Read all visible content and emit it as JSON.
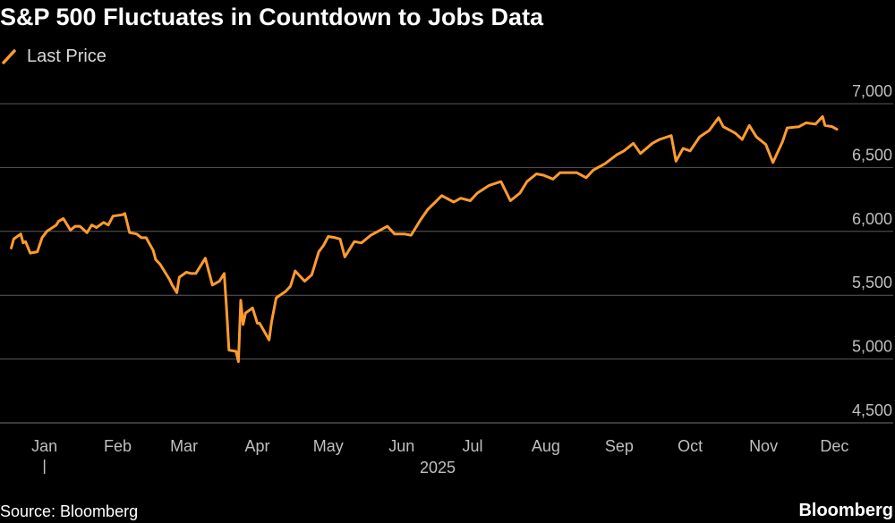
{
  "title": "S&P 500 Fluctuates in Countdown to Jobs Data",
  "legend": {
    "label": "Last Price",
    "color": "#ff9b2f"
  },
  "source": "Source: Bloomberg",
  "brand": "Bloomberg",
  "colors": {
    "background": "#000000",
    "grid": "#5a5a5a",
    "line": "#ff9b2f",
    "text": "#bfbfbf"
  },
  "chart_data": {
    "type": "line",
    "title": "S&P 500 Fluctuates in Countdown to Jobs Data",
    "xlabel": "2025",
    "ylabel": "",
    "ylim": [
      4500,
      7000
    ],
    "yticks": [
      4500,
      5000,
      5500,
      6000,
      6500,
      7000
    ],
    "ytick_labels": [
      "4,500",
      "5,000",
      "5,500",
      "6,000",
      "6,500",
      "7,000"
    ],
    "xtick_labels": [
      "Jan",
      "Feb",
      "Mar",
      "Apr",
      "May",
      "Jun",
      "Jul",
      "Aug",
      "Sep",
      "Oct",
      "Nov",
      "Dec"
    ],
    "xlim": [
      "2025-01-01",
      "2026-01-01"
    ],
    "grid": true,
    "legend_position": "top-left",
    "series": [
      {
        "name": "Last Price",
        "x": [
          "2025-01-02",
          "2025-01-03",
          "2025-01-06",
          "2025-01-07",
          "2025-01-08",
          "2025-01-10",
          "2025-01-13",
          "2025-01-15",
          "2025-01-17",
          "2025-01-21",
          "2025-01-22",
          "2025-01-24",
          "2025-01-27",
          "2025-01-29",
          "2025-01-31",
          "2025-02-03",
          "2025-02-05",
          "2025-02-07",
          "2025-02-10",
          "2025-02-12",
          "2025-02-14",
          "2025-02-18",
          "2025-02-19",
          "2025-02-21",
          "2025-02-24",
          "2025-02-26",
          "2025-02-28",
          "2025-03-03",
          "2025-03-04",
          "2025-03-06",
          "2025-03-10",
          "2025-03-11",
          "2025-03-13",
          "2025-03-14",
          "2025-03-17",
          "2025-03-19",
          "2025-03-21",
          "2025-03-25",
          "2025-03-28",
          "2025-03-31",
          "2025-04-02",
          "2025-04-03",
          "2025-04-04",
          "2025-04-07",
          "2025-04-08",
          "2025-04-09",
          "2025-04-10",
          "2025-04-11",
          "2025-04-14",
          "2025-04-16",
          "2025-04-17",
          "2025-04-21",
          "2025-04-22",
          "2025-04-24",
          "2025-04-28",
          "2025-04-30",
          "2025-05-02",
          "2025-05-06",
          "2025-05-09",
          "2025-05-12",
          "2025-05-14",
          "2025-05-16",
          "2025-05-19",
          "2025-05-21",
          "2025-05-23",
          "2025-05-27",
          "2025-05-30",
          "2025-06-03",
          "2025-06-06",
          "2025-06-10",
          "2025-06-13",
          "2025-06-17",
          "2025-06-20",
          "2025-06-24",
          "2025-06-27",
          "2025-07-03",
          "2025-07-08",
          "2025-07-11",
          "2025-07-15",
          "2025-07-18",
          "2025-07-23",
          "2025-07-28",
          "2025-08-01",
          "2025-08-05",
          "2025-08-08",
          "2025-08-12",
          "2025-08-15",
          "2025-08-19",
          "2025-08-22",
          "2025-08-26",
          "2025-08-29",
          "2025-09-02",
          "2025-09-05",
          "2025-09-10",
          "2025-09-15",
          "2025-09-18",
          "2025-09-22",
          "2025-09-25",
          "2025-09-30",
          "2025-10-03",
          "2025-10-08",
          "2025-10-10",
          "2025-10-13",
          "2025-10-16",
          "2025-10-20",
          "2025-10-24",
          "2025-10-28",
          "2025-10-30",
          "2025-11-04",
          "2025-11-07",
          "2025-11-10",
          "2025-11-13",
          "2025-11-17",
          "2025-11-20",
          "2025-11-24",
          "2025-11-26",
          "2025-12-01",
          "2025-12-04",
          "2025-12-08",
          "2025-12-11",
          "2025-12-12",
          "2025-12-15",
          "2025-12-17"
        ],
        "values": [
          5870,
          5940,
          5980,
          5910,
          5920,
          5830,
          5840,
          5950,
          6000,
          6050,
          6080,
          6100,
          6010,
          6040,
          6040,
          5990,
          6050,
          6030,
          6070,
          6050,
          6120,
          6130,
          6140,
          5990,
          5980,
          5950,
          5950,
          5850,
          5780,
          5740,
          5620,
          5580,
          5520,
          5640,
          5680,
          5670,
          5670,
          5790,
          5580,
          5610,
          5670,
          5400,
          5070,
          5060,
          4980,
          5460,
          5270,
          5360,
          5400,
          5280,
          5280,
          5150,
          5290,
          5480,
          5530,
          5570,
          5690,
          5610,
          5660,
          5840,
          5890,
          5960,
          5950,
          5940,
          5800,
          5920,
          5910,
          5970,
          6000,
          6040,
          5980,
          5980,
          5970,
          6090,
          6170,
          6280,
          6230,
          6260,
          6240,
          6300,
          6360,
          6390,
          6240,
          6300,
          6390,
          6450,
          6440,
          6410,
          6460,
          6460,
          6460,
          6420,
          6480,
          6530,
          6600,
          6630,
          6690,
          6610,
          6690,
          6720,
          6750,
          6550,
          6650,
          6630,
          6740,
          6790,
          6890,
          6820,
          6770,
          6720,
          6830,
          6740,
          6680,
          6540,
          6700,
          6810,
          6820,
          6850,
          6840,
          6900,
          6830,
          6820,
          6800
        ]
      }
    ]
  }
}
